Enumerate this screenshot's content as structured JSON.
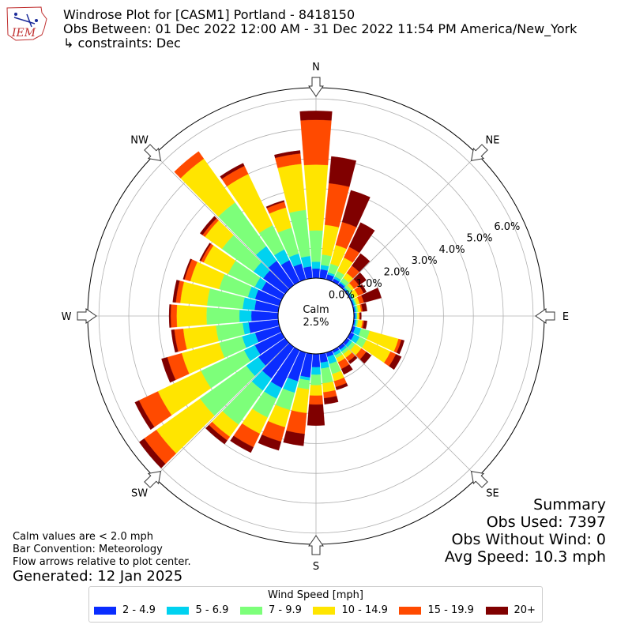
{
  "header": {
    "title": "Windrose Plot for [CASM1] Portland - 8418150",
    "obs_between": "Obs Between: 01 Dec 2022 12:00 AM - 31 Dec 2022 11:54 PM America/New_York",
    "constraints": "↳ constraints: Dec"
  },
  "logo": {
    "text": "IEM"
  },
  "notes": {
    "calm_note": "Calm values are < 2.0 mph",
    "bar_convention": "Bar Convention: Meteorology",
    "flow_arrows": "Flow arrows relative to plot center.",
    "generated": "Generated: 12 Jan 2025"
  },
  "summary": {
    "title": "Summary",
    "obs_used": "Obs Used: 7397",
    "obs_without_wind": "Obs Without Wind: 0",
    "avg_speed": "Avg Speed: 10.3 mph"
  },
  "legend": {
    "title": "Wind Speed [mph]",
    "items": [
      {
        "label": "2 - 4.9",
        "color": "#0a2dff"
      },
      {
        "label": "5 - 6.9",
        "color": "#00d2f0"
      },
      {
        "label": "7 - 9.9",
        "color": "#7dff7a"
      },
      {
        "label": "10 - 14.9",
        "color": "#ffe500"
      },
      {
        "label": "15 - 19.9",
        "color": "#ff4a00"
      },
      {
        "label": "20+",
        "color": "#800000"
      }
    ]
  },
  "chart_data": {
    "type": "windrose",
    "calm_label": "Calm",
    "calm_value": "2.5%",
    "calm_percent": 2.5,
    "radial_unit": "%",
    "radial_ticks": [
      "0.0%",
      "1.0%",
      "2.0%",
      "3.0%",
      "4.0%",
      "5.0%",
      "6.0%"
    ],
    "direction_labels": [
      "N",
      "NE",
      "E",
      "SE",
      "S",
      "SW",
      "W",
      "NW"
    ],
    "bar_convention": "Meteorology",
    "speed_bins": [
      "2 - 4.9",
      "5 - 6.9",
      "7 - 9.9",
      "10 - 14.9",
      "15 - 19.9",
      "20+"
    ],
    "directions_deg": [
      0,
      10,
      20,
      30,
      40,
      50,
      60,
      70,
      80,
      90,
      100,
      110,
      120,
      130,
      140,
      150,
      160,
      170,
      180,
      190,
      200,
      210,
      220,
      230,
      240,
      250,
      260,
      270,
      280,
      290,
      300,
      310,
      320,
      330,
      340,
      350
    ],
    "cumulative_percent": [
      [
        0.32,
        0.55,
        1.6,
        3.8,
        5.3,
        5.6
      ],
      [
        0.3,
        0.45,
        0.8,
        1.8,
        3.2,
        4.1
      ],
      [
        0.18,
        0.25,
        0.55,
        1.2,
        2.0,
        3.1
      ],
      [
        0.12,
        0.2,
        0.4,
        0.9,
        1.3,
        2.2
      ],
      [
        0.1,
        0.15,
        0.3,
        0.5,
        0.8,
        1.3
      ],
      [
        0.05,
        0.1,
        0.2,
        0.3,
        0.5,
        0.8
      ],
      [
        0.05,
        0.1,
        0.15,
        0.3,
        0.5,
        0.6
      ],
      [
        0.05,
        0.1,
        0.15,
        0.25,
        0.4,
        1.0
      ],
      [
        0.05,
        0.1,
        0.15,
        0.25,
        0.3,
        0.45
      ],
      [
        0.05,
        0.1,
        0.12,
        0.18,
        0.2,
        0.25
      ],
      [
        0.05,
        0.1,
        0.15,
        0.3,
        0.35,
        0.45
      ],
      [
        0.1,
        0.3,
        0.6,
        1.6,
        1.7,
        1.8
      ],
      [
        0.15,
        0.35,
        0.6,
        1.5,
        1.7,
        1.9
      ],
      [
        0.12,
        0.22,
        0.35,
        0.6,
        0.8,
        1.0
      ],
      [
        0.12,
        0.2,
        0.3,
        0.45,
        0.6,
        0.7
      ],
      [
        0.1,
        0.2,
        0.3,
        0.45,
        0.7,
        0.9
      ],
      [
        0.15,
        0.4,
        0.75,
        1.0,
        1.2,
        1.3
      ],
      [
        0.3,
        0.5,
        1.0,
        1.3,
        1.5,
        1.7
      ],
      [
        0.45,
        0.7,
        1.05,
        1.4,
        1.7,
        2.4
      ],
      [
        0.8,
        0.9,
        1.2,
        2.0,
        2.7,
        3.1
      ],
      [
        1.0,
        1.4,
        2.0,
        2.6,
        3.1,
        3.4
      ],
      [
        1.4,
        1.8,
        2.5,
        3.1,
        3.6,
        3.8
      ],
      [
        1.3,
        1.8,
        3.2,
        3.7,
        3.85,
        4.0
      ],
      [
        1.1,
        1.6,
        3.5,
        5.3,
        5.8,
        6.0
      ],
      [
        1.0,
        1.4,
        3.0,
        4.6,
        5.3,
        5.45
      ],
      [
        0.85,
        1.3,
        2.1,
        3.4,
        3.9,
        4.1
      ],
      [
        1.0,
        1.2,
        2.1,
        3.2,
        3.5,
        3.6
      ],
      [
        0.9,
        1.3,
        2.4,
        3.4,
        3.6,
        3.65
      ],
      [
        0.8,
        1.2,
        2.4,
        3.3,
        3.45,
        3.55
      ],
      [
        0.85,
        1.1,
        2.1,
        3.1,
        3.3,
        3.35
      ],
      [
        0.75,
        1.0,
        2.0,
        2.9,
        3.0,
        3.05
      ],
      [
        0.9,
        1.3,
        2.6,
        3.3,
        3.4,
        3.5
      ],
      [
        1.0,
        1.6,
        3.4,
        5.2,
        5.5,
        5.5
      ],
      [
        0.8,
        1.2,
        2.1,
        4.0,
        4.3,
        4.4
      ],
      [
        0.55,
        0.9,
        1.8,
        2.5,
        2.7,
        2.75
      ],
      [
        0.4,
        0.75,
        2.3,
        3.85,
        4.2,
        4.3
      ]
    ]
  }
}
